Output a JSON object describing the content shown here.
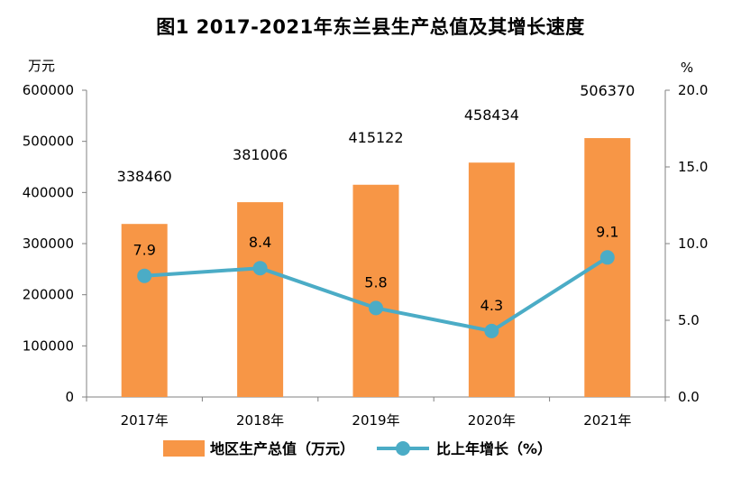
{
  "chart_data": {
    "type": "bar+line",
    "title": "图1   2017-2021年东兰县生产总值及其增长速度",
    "categories": [
      "2017年",
      "2018年",
      "2019年",
      "2020年",
      "2021年"
    ],
    "series": [
      {
        "name": "地区生产总值（万元）",
        "type": "bar",
        "axis": "left",
        "color": "#F79646",
        "values": [
          338460,
          381006,
          415122,
          458434,
          506370
        ],
        "labels": [
          "338460",
          "381006",
          "415122",
          "458434",
          "506370"
        ]
      },
      {
        "name": "比上年增长（%）",
        "type": "line",
        "axis": "right",
        "color": "#4BACC6",
        "values": [
          7.9,
          8.4,
          5.8,
          4.3,
          9.1
        ],
        "labels": [
          "7.9",
          "8.4",
          "5.8",
          "4.3",
          "9.1"
        ]
      }
    ],
    "y_left": {
      "unit": "万元",
      "range": [
        0,
        600000
      ],
      "ticks": [
        "0",
        "100000",
        "200000",
        "300000",
        "400000",
        "500000",
        "600000"
      ]
    },
    "y_right": {
      "unit": "%",
      "range": [
        0,
        20
      ],
      "ticks": [
        "0.0",
        "5.0",
        "10.0",
        "15.0",
        "20.0"
      ]
    },
    "grid": false,
    "legend_position": "bottom"
  }
}
